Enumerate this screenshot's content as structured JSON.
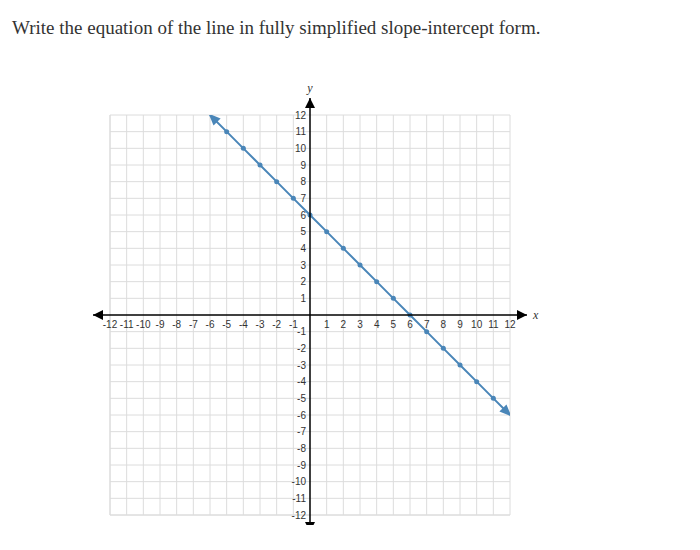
{
  "chart_data": {
    "type": "line",
    "title": "Write the equation of the line in fully simplified slope-intercept form.",
    "x_label": "x",
    "y_label": "y",
    "x": [
      -6,
      -5,
      -4,
      -3,
      -2,
      -1,
      0,
      1,
      2,
      3,
      4,
      5,
      6,
      7,
      8,
      9,
      10,
      11,
      12
    ],
    "values": [
      12,
      11,
      10,
      9,
      8,
      7,
      6,
      5,
      4,
      3,
      2,
      1,
      0,
      -1,
      -2,
      -3,
      -4,
      -5,
      -6
    ],
    "color": "#4a86b8",
    "marker": "circle",
    "xlim": [
      -12,
      12
    ],
    "ylim": [
      -12,
      12
    ],
    "xticks": [
      -12,
      -11,
      -10,
      -9,
      -8,
      -7,
      -6,
      -5,
      -4,
      -3,
      -2,
      -1,
      1,
      2,
      3,
      4,
      5,
      6,
      7,
      8,
      9,
      10,
      11,
      12
    ],
    "yticks": [
      -12,
      -11,
      -10,
      -9,
      -8,
      -7,
      -6,
      -5,
      -4,
      -3,
      -2,
      -1,
      1,
      2,
      3,
      4,
      5,
      6,
      7,
      8,
      9,
      10,
      11,
      12
    ],
    "grid": true
  }
}
